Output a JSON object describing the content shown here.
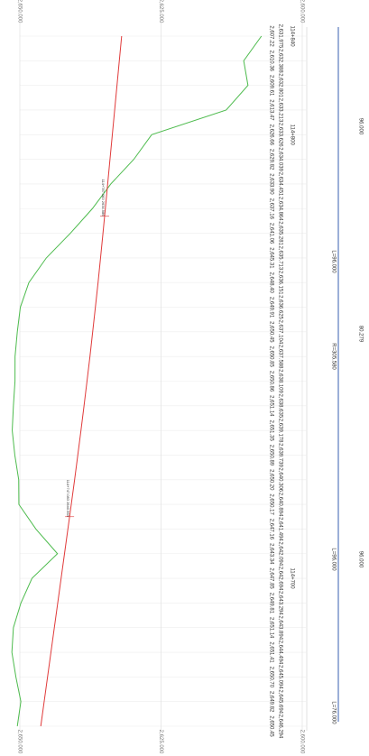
{
  "chart_data": {
    "type": "line",
    "categories": [
      "114+840",
      null,
      null,
      null,
      "114+800",
      null,
      null,
      null,
      null,
      null,
      null,
      null,
      null,
      null,
      null,
      null,
      null,
      null,
      null,
      null,
      null,
      null,
      "114+700",
      null,
      null,
      null,
      null,
      null,
      null
    ],
    "series": [
      {
        "color": "#4dbb4d",
        "values": [
          2607.22,
          2610.36,
          2609.61,
          2613.47,
          2626.66,
          2629.82,
          2633.9,
          2637.16,
          2641.06,
          2645.31,
          2648.4,
          2649.91,
          2650.45,
          2650.85,
          2650.86,
          2651.14,
          2651.35,
          2650.89,
          2650.2,
          2650.17,
          2647.16,
          2643.34,
          2647.85,
          2649.81,
          2651.14,
          2651.41,
          2650.7,
          2649.82,
          2650.45
        ],
        "value_labels": [
          "2,607.22",
          "2,610.36",
          "2,609.61",
          "2,613.47",
          "2,626.66",
          "2,629.82",
          "2,633.90",
          "2,637.16",
          "2,641.06",
          "2,645.31",
          "2,648.40",
          "2,649.91",
          "2,650.45",
          "2,650.85",
          "2,650.86",
          "2,651.14",
          "2,651.35",
          "2,650.89",
          "2,650.20",
          "2,650.17",
          "2,647.16",
          "2,643.34",
          "2,647.85",
          "2,649.81",
          "2,651.14",
          "2,651.41",
          "2,650.70",
          "2,649.82",
          "2,650.45"
        ]
      },
      {
        "color": "#e03a3a",
        "values": [
          2631.975,
          2632.388,
          2632.801,
          2633.213,
          2633.626,
          2634.039,
          2634.451,
          2634.864,
          2635.281,
          2635.713,
          2636.151,
          2636.625,
          2637.104,
          2637.588,
          2638.109,
          2638.635,
          2639.178,
          2639.739,
          2640.306,
          2640.894,
          2641.494,
          2642.094,
          2642.694,
          2643.294,
          2643.894,
          2644.494,
          2645.094,
          2645.694,
          2646.294
        ],
        "value_labels": [
          "2,631.975",
          "2,632.388",
          "2,632.801",
          "2,633.213",
          "2,633.626",
          "2,634.039",
          "2,634.451",
          "2,634.864",
          "2,635.281",
          "2,635.713",
          "2,636.151",
          "2,636.625",
          "2,637.104",
          "2,637.588",
          "2,638.109",
          "2,638.635",
          "2,639.178",
          "2,639.739",
          "2,640.306",
          "2,640.894",
          "2,641.494",
          "2,642.094",
          "2,642.694",
          "2,643.294",
          "2,643.894",
          "2,644.494",
          "2,645.094",
          "2,645.694",
          "2,646.294"
        ]
      }
    ],
    "ylim": [
      2650,
      2600
    ],
    "yticks": [
      {
        "value": 2650,
        "label": "2,650.000"
      },
      {
        "value": 2625,
        "label": "2,625.000"
      },
      {
        "value": 2600,
        "label": "2,600.000"
      }
    ],
    "grid": true,
    "annotations": [
      "114+787.083 2634.986",
      "114+747.083 2640.563"
    ],
    "curve_labels": [
      "L=96.000",
      "R=305.580",
      "L=96.000",
      "L=76.000"
    ],
    "curve_values": [
      "96.000",
      "80.279",
      "96.000"
    ]
  }
}
